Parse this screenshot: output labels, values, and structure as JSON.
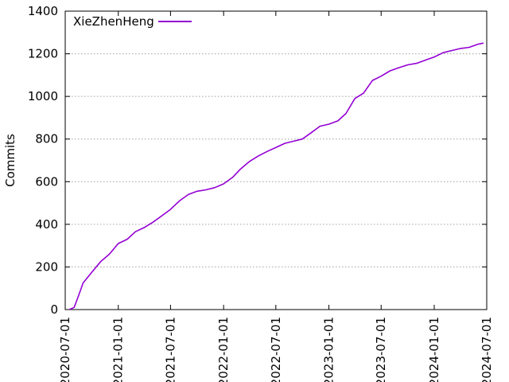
{
  "chart_data": {
    "type": "line",
    "title": "",
    "xlabel": "",
    "ylabel": "Commits",
    "ylim": [
      0,
      1400
    ],
    "yticks": [
      0,
      200,
      400,
      600,
      800,
      1000,
      1200,
      1400
    ],
    "xlim": [
      "2020-07-01",
      "2024-07-01"
    ],
    "xticks": [
      "2020-07-01",
      "2021-01-01",
      "2021-07-01",
      "2022-01-01",
      "2022-07-01",
      "2023-01-01",
      "2023-07-01",
      "2024-01-01",
      "2024-07-01"
    ],
    "grid": true,
    "legend_position": "top-left",
    "series": [
      {
        "name": "XieZhenHeng",
        "color": "#9400d3",
        "x": [
          "2020-07-15",
          "2020-08-01",
          "2020-08-15",
          "2020-09-01",
          "2020-10-01",
          "2020-11-01",
          "2020-12-01",
          "2021-01-01",
          "2021-02-01",
          "2021-03-01",
          "2021-04-01",
          "2021-05-01",
          "2021-06-01",
          "2021-07-01",
          "2021-08-01",
          "2021-09-01",
          "2021-10-01",
          "2021-11-01",
          "2021-12-01",
          "2022-01-01",
          "2022-02-01",
          "2022-03-01",
          "2022-04-01",
          "2022-05-01",
          "2022-06-01",
          "2022-07-01",
          "2022-08-01",
          "2022-09-01",
          "2022-10-01",
          "2022-11-01",
          "2022-12-01",
          "2023-01-01",
          "2023-02-01",
          "2023-03-01",
          "2023-04-01",
          "2023-05-01",
          "2023-06-01",
          "2023-07-01",
          "2023-08-01",
          "2023-09-01",
          "2023-10-01",
          "2023-11-01",
          "2023-12-01",
          "2024-01-01",
          "2024-02-01",
          "2024-03-01",
          "2024-04-01",
          "2024-05-01",
          "2024-06-01",
          "2024-06-20"
        ],
        "values": [
          0,
          10,
          60,
          125,
          175,
          225,
          260,
          310,
          330,
          365,
          385,
          410,
          440,
          470,
          510,
          540,
          555,
          562,
          572,
          590,
          620,
          660,
          695,
          720,
          742,
          760,
          780,
          790,
          800,
          830,
          860,
          870,
          885,
          920,
          990,
          1015,
          1075,
          1095,
          1120,
          1135,
          1148,
          1155,
          1170,
          1185,
          1205,
          1215,
          1225,
          1230,
          1245,
          1250
        ]
      }
    ]
  }
}
